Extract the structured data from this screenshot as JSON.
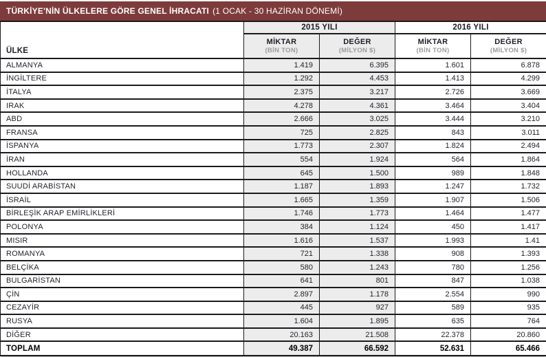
{
  "header": {
    "title": "TÜRKİYE'NİN ÜLKELERE GÖRE GENEL İHRACATI",
    "period": "(1 OCAK - 30 HAZİRAN DÖNEMİ)"
  },
  "table": {
    "country_header": "ÜLKE",
    "year_groups": [
      {
        "label": "2015 YILI"
      },
      {
        "label": "2016 YILI"
      }
    ],
    "sub_headers": [
      {
        "label": "MİKTAR",
        "unit": "(BİN TON)"
      },
      {
        "label": "DEĞER",
        "unit": "(MİLYON $)"
      },
      {
        "label": "MİKTAR",
        "unit": "(BİN TON)"
      },
      {
        "label": "DEĞER",
        "unit": "(MİLYON $)"
      }
    ],
    "rows": [
      {
        "country": "ALMANYA",
        "values": [
          "1.419",
          "6.395",
          "1.601",
          "6.878"
        ]
      },
      {
        "country": "İNGİLTERE",
        "values": [
          "1.292",
          "4.453",
          "1.413",
          "4.299"
        ]
      },
      {
        "country": "İTALYA",
        "values": [
          "2.375",
          "3.217",
          "2.726",
          "3.669"
        ]
      },
      {
        "country": "IRAK",
        "values": [
          "4.278",
          "4.361",
          "3.464",
          "3.404"
        ]
      },
      {
        "country": "ABD",
        "values": [
          "2.666",
          "3.025",
          "3.444",
          "3.210"
        ]
      },
      {
        "country": "FRANSA",
        "values": [
          "725",
          "2.825",
          "843",
          "3.011"
        ]
      },
      {
        "country": "İSPANYA",
        "values": [
          "1.773",
          "2.307",
          "1.824",
          "2.494"
        ]
      },
      {
        "country": "İRAN",
        "values": [
          "554",
          "1.924",
          "564",
          "1.864"
        ]
      },
      {
        "country": "HOLLANDA",
        "values": [
          "645",
          "1.500",
          "989",
          "1.848"
        ]
      },
      {
        "country": "SUUDİ ARABİSTAN",
        "values": [
          "1.187",
          "1.893",
          "1.247",
          "1.732"
        ]
      },
      {
        "country": "İSRAİL",
        "values": [
          "1.665",
          "1.359",
          "1.907",
          "1.506"
        ]
      },
      {
        "country": "BİRLEŞİK ARAP EMİRLİKLERİ",
        "values": [
          "1.746",
          "1.773",
          "1.464",
          "1.477"
        ]
      },
      {
        "country": "POLONYA",
        "values": [
          "384",
          "1.124",
          "450",
          "1.417"
        ]
      },
      {
        "country": "MISIR",
        "values": [
          "1.616",
          "1.537",
          "1.993",
          "1.41"
        ]
      },
      {
        "country": "ROMANYA",
        "values": [
          "721",
          "1.338",
          "908",
          "1.393"
        ]
      },
      {
        "country": "BELÇİKA",
        "values": [
          "580",
          "1.243",
          "780",
          "1.256"
        ]
      },
      {
        "country": "BULGARİSTAN",
        "values": [
          "641",
          "801",
          "847",
          "1.038"
        ]
      },
      {
        "country": "ÇİN",
        "values": [
          "2.897",
          "1.178",
          "2.554",
          "990"
        ]
      },
      {
        "country": "CEZAYİR",
        "values": [
          "445",
          "927",
          "589",
          "935"
        ]
      },
      {
        "country": "RUSYA",
        "values": [
          "1.604",
          "1.895",
          "635",
          "764"
        ]
      },
      {
        "country": "DİĞER",
        "values": [
          "20.163",
          "21.508",
          "22.378",
          "20.860"
        ]
      }
    ],
    "total": {
      "label": "TOPLAM",
      "values": [
        "49.387",
        "66.592",
        "52.631",
        "65.466"
      ]
    }
  },
  "colors": {
    "title_bar_bg": "#7e3b3b",
    "title_text": "#ffffff",
    "col_2015_bg": "#ececec",
    "border": "#1a1a1a",
    "text": "#23232d",
    "unit_text": "#9b9b9b"
  },
  "chart_data": {
    "type": "table",
    "title": "TÜRKİYE'NİN ÜLKELERE GÖRE GENEL İHRACATI (1 OCAK - 30 HAZİRAN DÖNEMİ)",
    "columns": [
      "ÜLKE",
      "2015 YILI MİKTAR (BİN TON)",
      "2015 YILI DEĞER (MİLYON $)",
      "2016 YILI MİKTAR (BİN TON)",
      "2016 YILI DEĞER (MİLYON $)"
    ],
    "rows": [
      [
        "ALMANYA",
        "1.419",
        "6.395",
        "1.601",
        "6.878"
      ],
      [
        "İNGİLTERE",
        "1.292",
        "4.453",
        "1.413",
        "4.299"
      ],
      [
        "İTALYA",
        "2.375",
        "3.217",
        "2.726",
        "3.669"
      ],
      [
        "IRAK",
        "4.278",
        "4.361",
        "3.464",
        "3.404"
      ],
      [
        "ABD",
        "2.666",
        "3.025",
        "3.444",
        "3.210"
      ],
      [
        "FRANSA",
        "725",
        "2.825",
        "843",
        "3.011"
      ],
      [
        "İSPANYA",
        "1.773",
        "2.307",
        "1.824",
        "2.494"
      ],
      [
        "İRAN",
        "554",
        "1.924",
        "564",
        "1.864"
      ],
      [
        "HOLLANDA",
        "645",
        "1.500",
        "989",
        "1.848"
      ],
      [
        "SUUDİ ARABİSTAN",
        "1.187",
        "1.893",
        "1.247",
        "1.732"
      ],
      [
        "İSRAİL",
        "1.665",
        "1.359",
        "1.907",
        "1.506"
      ],
      [
        "BİRLEŞİK ARAP EMİRLİKLERİ",
        "1.746",
        "1.773",
        "1.464",
        "1.477"
      ],
      [
        "POLONYA",
        "384",
        "1.124",
        "450",
        "1.417"
      ],
      [
        "MISIR",
        "1.616",
        "1.537",
        "1.993",
        "1.41"
      ],
      [
        "ROMANYA",
        "721",
        "1.338",
        "908",
        "1.393"
      ],
      [
        "BELÇİKA",
        "580",
        "1.243",
        "780",
        "1.256"
      ],
      [
        "BULGARİSTAN",
        "641",
        "801",
        "847",
        "1.038"
      ],
      [
        "ÇİN",
        "2.897",
        "1.178",
        "2.554",
        "990"
      ],
      [
        "CEZAYİR",
        "445",
        "927",
        "589",
        "935"
      ],
      [
        "RUSYA",
        "1.604",
        "1.895",
        "635",
        "764"
      ],
      [
        "DİĞER",
        "20.163",
        "21.508",
        "22.378",
        "20.860"
      ],
      [
        "TOPLAM",
        "49.387",
        "66.592",
        "52.631",
        "65.466"
      ]
    ]
  }
}
